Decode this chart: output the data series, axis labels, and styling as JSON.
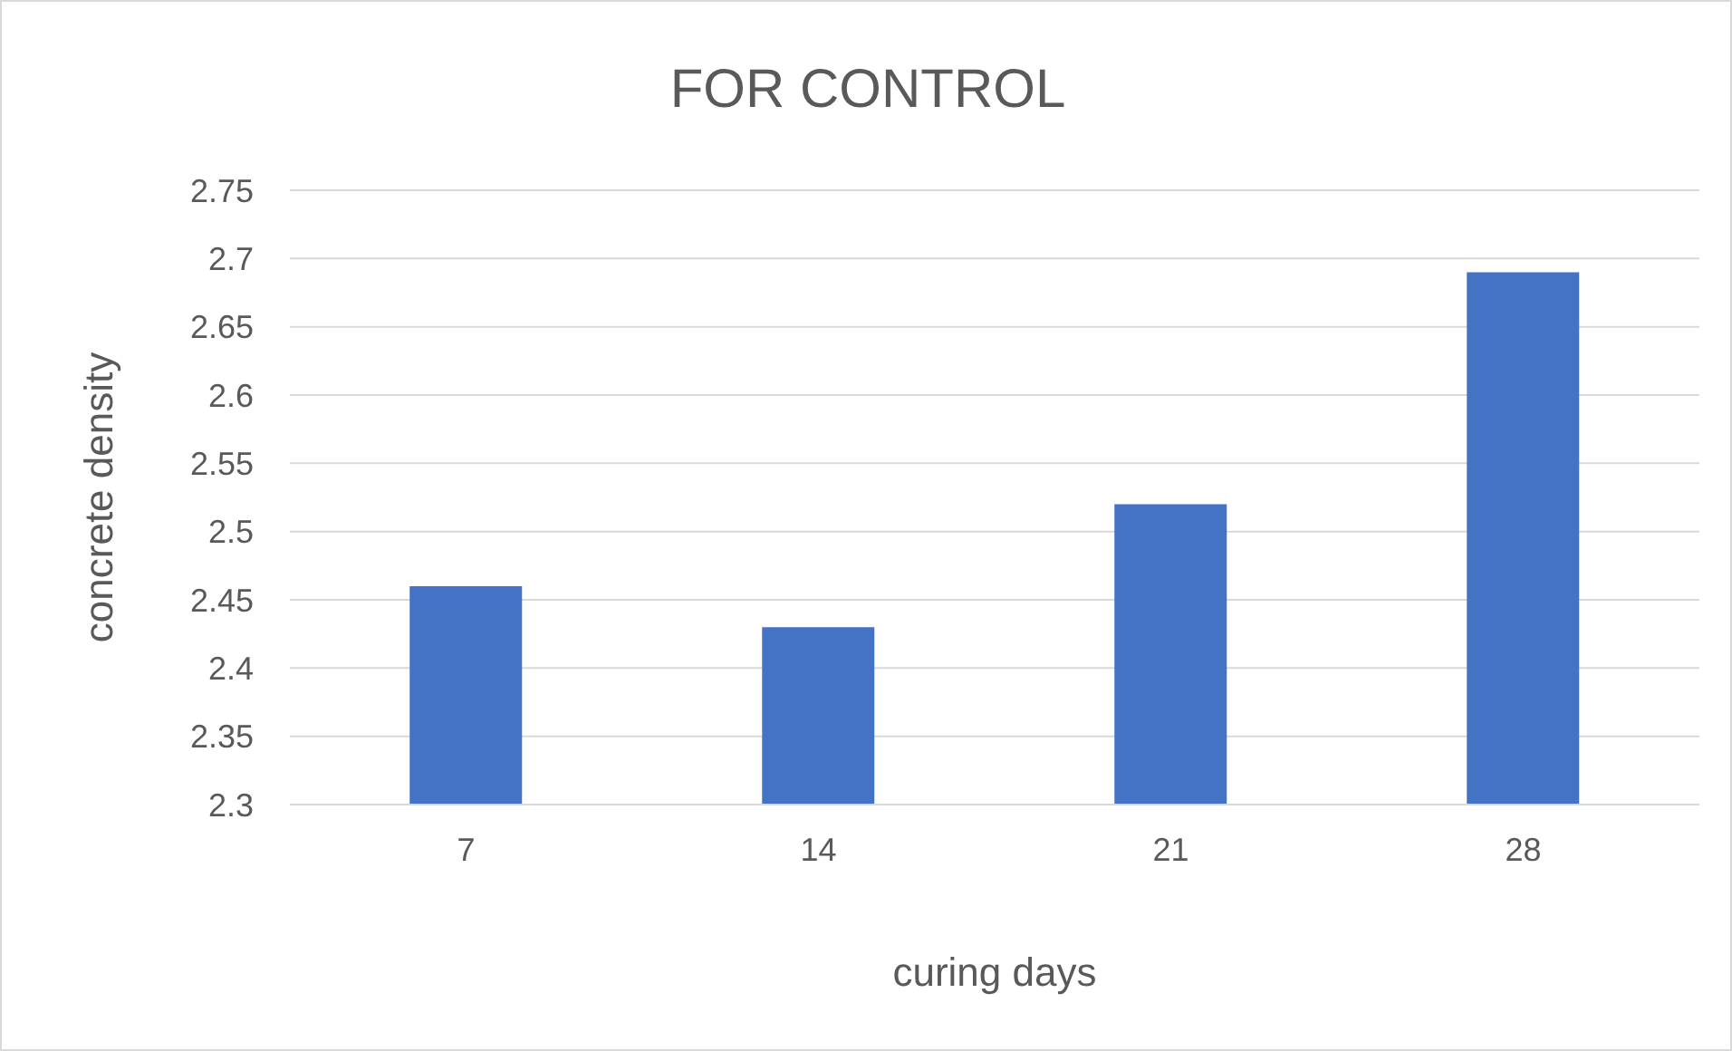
{
  "chart_data": {
    "type": "bar",
    "title": "FOR CONTROL",
    "xlabel": "curing days",
    "ylabel": "concrete density",
    "categories": [
      "7",
      "14",
      "21",
      "28"
    ],
    "values": [
      2.46,
      2.43,
      2.52,
      2.69
    ],
    "color": "#4472c4",
    "ylim": [
      2.3,
      2.75
    ],
    "yticks": [
      2.3,
      2.35,
      2.4,
      2.45,
      2.5,
      2.55,
      2.6,
      2.65,
      2.7,
      2.75
    ],
    "grid": "y"
  }
}
